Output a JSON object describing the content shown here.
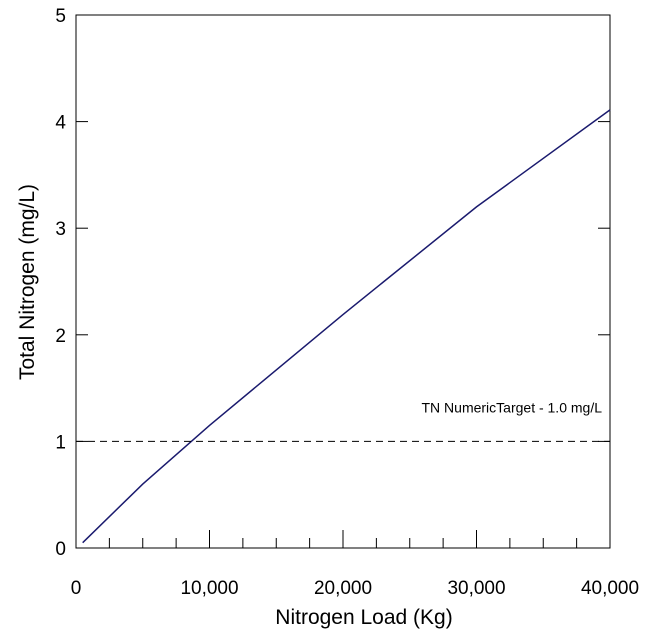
{
  "chart_data": {
    "type": "line",
    "x_label": "Nitrogen Load (Kg)",
    "y_label": "Total Nitrogen (mg/L)",
    "x": [
      500,
      5000,
      10000,
      20000,
      30000,
      40000
    ],
    "series": [
      {
        "name": "Total Nitrogen",
        "color": "#1a1a6e",
        "values": [
          0.05,
          0.6,
          1.15,
          2.19,
          3.2,
          4.11
        ]
      }
    ],
    "target": {
      "value": 1,
      "label": "TN NumericTarget - 1.0 mg/L"
    },
    "xlim": [
      0,
      40000
    ],
    "xticks": [
      0,
      {
        "value": 10000,
        "label": "10,000"
      },
      {
        "value": 20000,
        "label": "20,000"
      },
      {
        "value": 30000,
        "label": "30,000"
      },
      {
        "value": 40000,
        "label": "40,000"
      }
    ],
    "xminorticks": [
      2500,
      5000,
      7500,
      12500,
      15000,
      17500,
      22500,
      25000,
      27500,
      32500,
      35000,
      37500
    ],
    "ylim": [
      0,
      5
    ],
    "yticks": [
      0,
      1,
      2,
      3,
      4,
      5
    ]
  }
}
